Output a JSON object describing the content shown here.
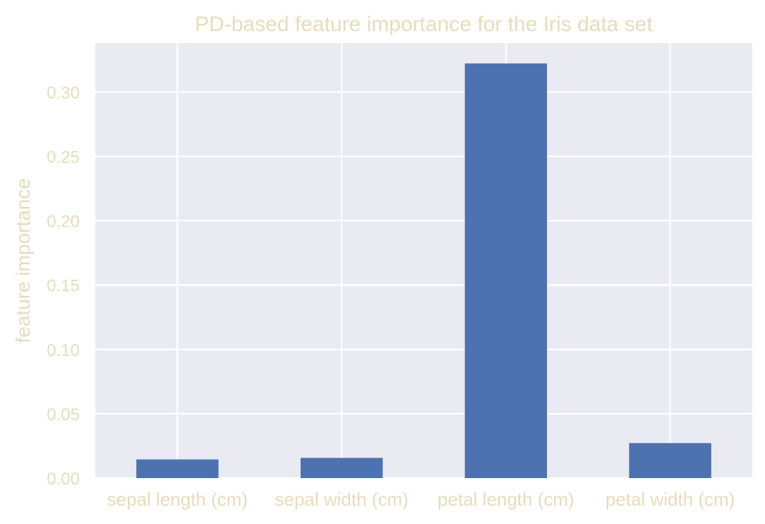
{
  "chart_data": {
    "type": "bar",
    "title": "PD-based feature importance for the Iris data set",
    "xlabel": "",
    "ylabel": "feature importance",
    "categories": [
      "sepal length (cm)",
      "sepal width (cm)",
      "petal length (cm)",
      "petal width (cm)"
    ],
    "values": [
      0.0145,
      0.0157,
      0.3222,
      0.0272
    ],
    "ylim": [
      0,
      0.338
    ],
    "yticks": [
      0.0,
      0.05,
      0.1,
      0.15,
      0.2,
      0.25,
      0.3
    ],
    "ytick_labels": [
      "0.00",
      "0.05",
      "0.10",
      "0.15",
      "0.20",
      "0.25",
      "0.30"
    ],
    "grid": true,
    "legend": "none"
  },
  "colors": {
    "bar": "#4c72b0",
    "plot_background": "#eaeaf2",
    "grid": "#ffffff",
    "text": "#e6dcbc"
  }
}
